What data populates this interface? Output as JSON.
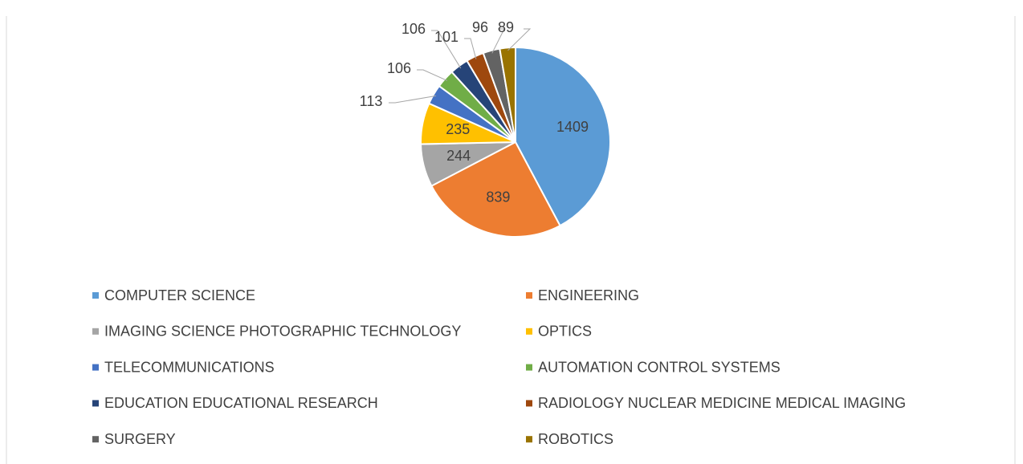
{
  "chart_data": {
    "type": "pie",
    "categories": [
      "COMPUTER SCIENCE",
      "ENGINEERING",
      "IMAGING SCIENCE PHOTOGRAPHIC TECHNOLOGY",
      "OPTICS",
      "TELECOMMUNICATIONS",
      "AUTOMATION CONTROL SYSTEMS",
      "EDUCATION EDUCATIONAL RESEARCH",
      "RADIOLOGY NUCLEAR MEDICINE MEDICAL IMAGING",
      "SURGERY",
      "ROBOTICS"
    ],
    "values": [
      1409,
      839,
      244,
      235,
      113,
      106,
      106,
      101,
      96,
      89
    ],
    "colors": [
      "#5b9bd5",
      "#ed7d31",
      "#a5a5a5",
      "#ffc000",
      "#4472c4",
      "#70ad47",
      "#264478",
      "#9e480e",
      "#636363",
      "#997300"
    ],
    "legend": "bottom"
  }
}
